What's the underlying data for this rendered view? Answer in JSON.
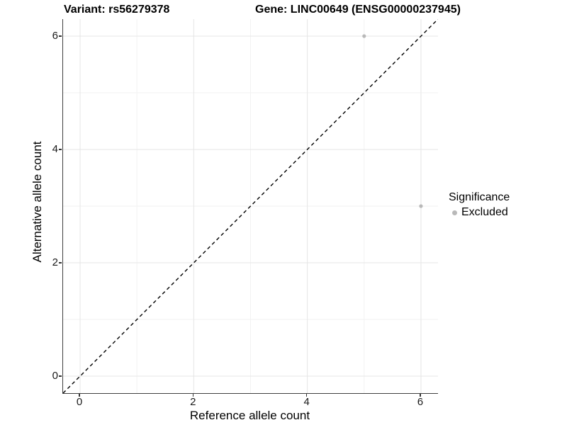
{
  "chart_data": {
    "type": "scatter",
    "title_left": "Variant: rs56279378",
    "title_right": "Gene: LINC00649 (ENSG00000237945)",
    "xlabel": "Reference allele count",
    "ylabel": "Alternative allele count",
    "xlim": [
      -0.3,
      6.3
    ],
    "ylim": [
      -0.3,
      6.3
    ],
    "x_ticks": [
      0,
      2,
      4,
      6
    ],
    "y_ticks": [
      0,
      2,
      4,
      6
    ],
    "x_minor_ticks": [
      1,
      3,
      5
    ],
    "y_minor_ticks": [
      1,
      3,
      5
    ],
    "grid": true,
    "series": [
      {
        "name": "Excluded",
        "color": "#b9b9b9",
        "points": [
          {
            "x": 5,
            "y": 6
          },
          {
            "x": 6,
            "y": 3
          }
        ]
      }
    ],
    "reference_line": {
      "kind": "identity",
      "slope": 1,
      "intercept": 0,
      "style": "dashed",
      "color": "#000000"
    },
    "legend": {
      "title": "Significance",
      "position": "right",
      "items": [
        {
          "label": "Excluded",
          "color": "#b9b9b9"
        }
      ]
    },
    "colors": {
      "major_grid": "#e5e5e5",
      "minor_grid": "#f2f2f2",
      "axis_line": "#3f3f3f",
      "tick_label": "#1a1a1a",
      "point": "#b9b9b9"
    }
  }
}
